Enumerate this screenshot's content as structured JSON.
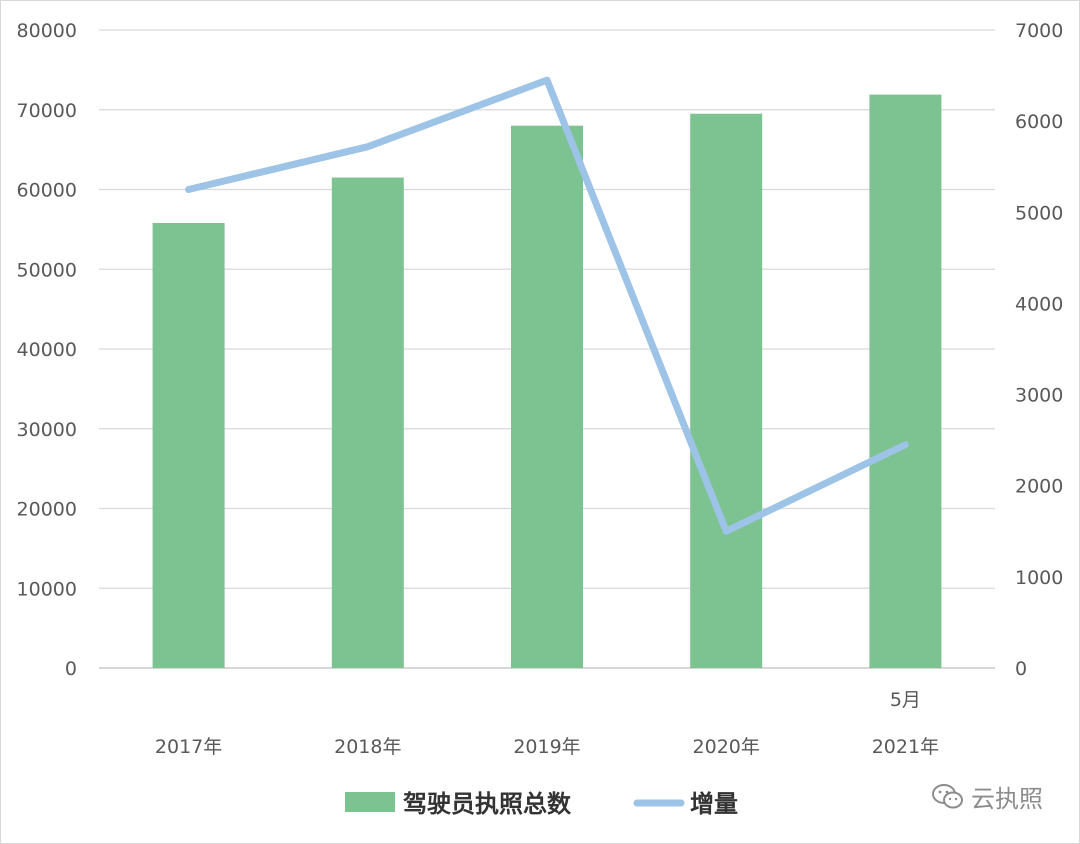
{
  "chart_data": {
    "type": "bar",
    "categories": [
      "2017年",
      "2018年",
      "2019年",
      "2020年",
      "2021年"
    ],
    "category_note": {
      "index": 4,
      "text": "5月"
    },
    "series": [
      {
        "name": "驾驶员执照总数",
        "type": "bar",
        "axis": "left",
        "color": "#7dc291",
        "values": [
          55800,
          61500,
          68000,
          69500,
          71900
        ]
      },
      {
        "name": "增量",
        "type": "line",
        "axis": "right",
        "color": "#9dc3e6",
        "values": [
          5250,
          5720,
          6450,
          1500,
          2450
        ]
      }
    ],
    "y_left": {
      "min": 0,
      "max": 80000,
      "ticks": [
        0,
        10000,
        20000,
        30000,
        40000,
        50000,
        60000,
        70000,
        80000
      ]
    },
    "y_right": {
      "min": 0,
      "max": 7000,
      "ticks": [
        0,
        1000,
        2000,
        3000,
        4000,
        5000,
        6000,
        7000
      ]
    },
    "grid": true,
    "legend_position": "bottom"
  },
  "watermark": {
    "text": "云执照",
    "icon": "wechat-icon"
  }
}
